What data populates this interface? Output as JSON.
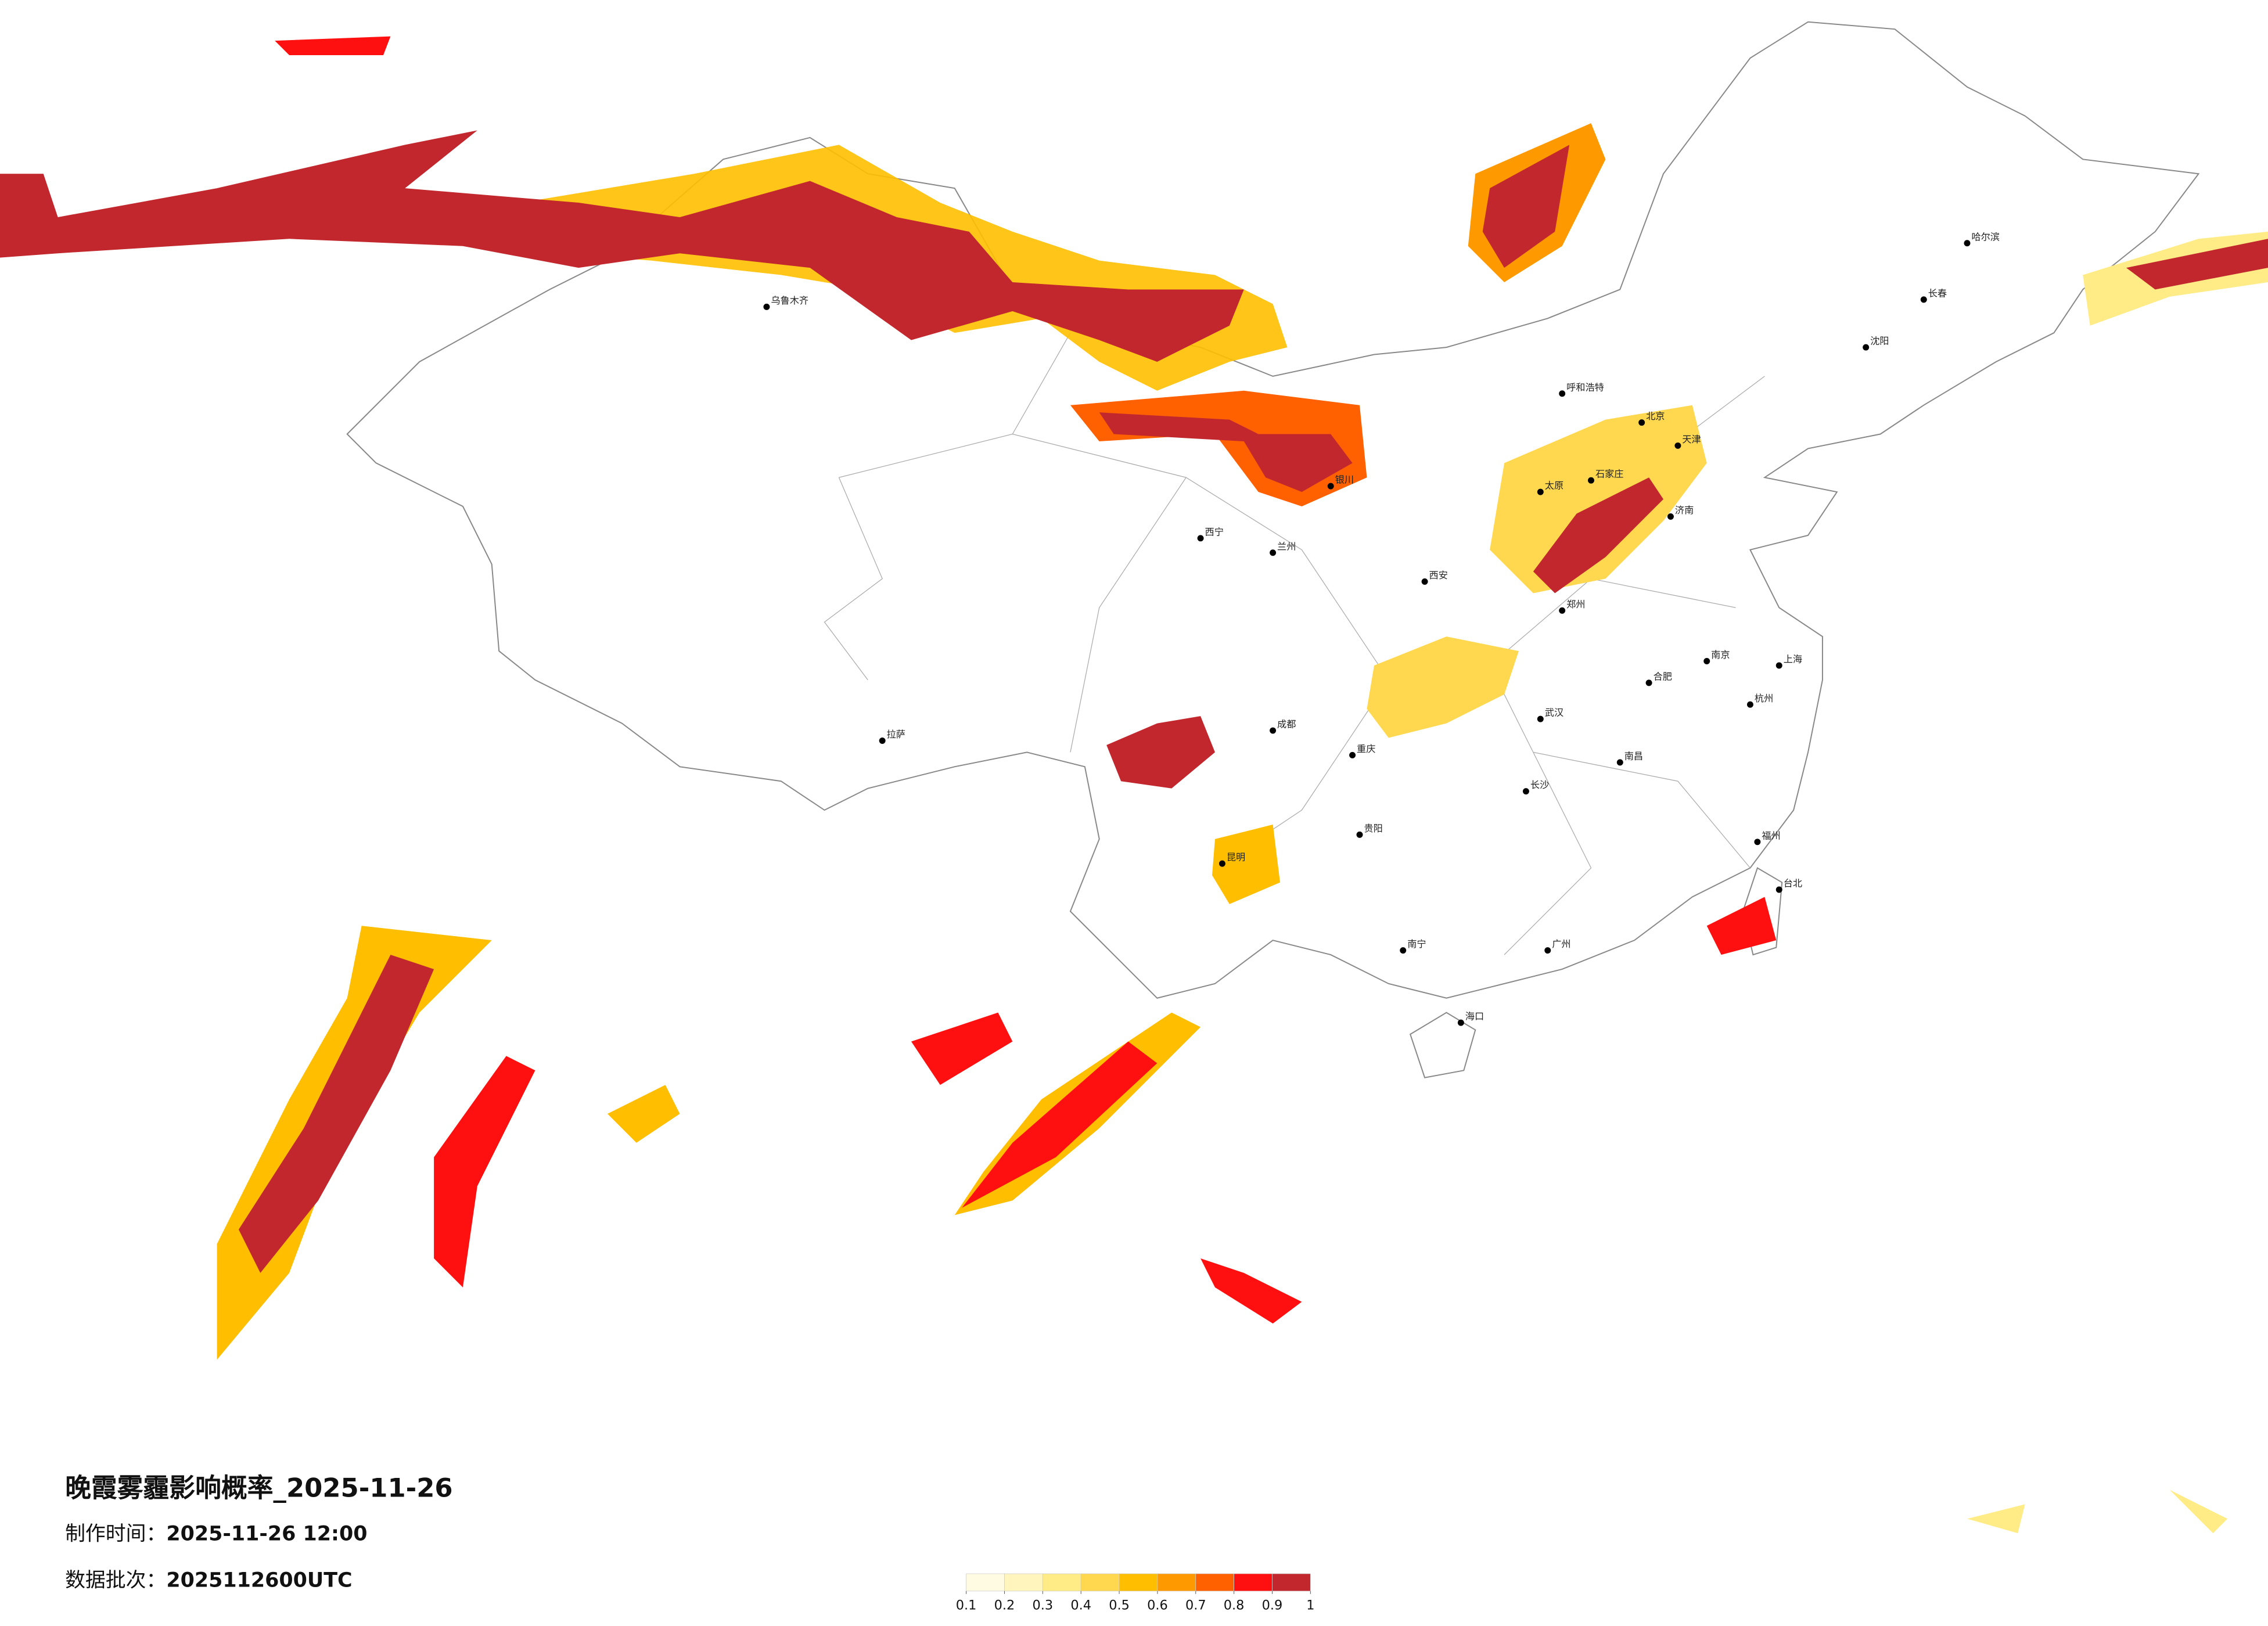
{
  "map": {
    "title": "晚霞雾霾影响概率_2025-11-26",
    "info": [
      {
        "label": "制作时间：",
        "value": "2025-11-26 12:00"
      },
      {
        "label": "数据批次：",
        "value": "2025112600UTC"
      }
    ],
    "legend": {
      "ticks": [
        0.1,
        0.2,
        0.3,
        0.4,
        0.5,
        0.6,
        0.7,
        0.8,
        0.9,
        1
      ],
      "colors": [
        "#fffbe3",
        "#fff5bd",
        "#ffec86",
        "#ffd84f",
        "#ffbf00",
        "#ff9900",
        "#ff6000",
        "#ff1010",
        "#c1272d"
      ]
    },
    "cities": [
      "哈尔滨",
      "长春",
      "沈阳",
      "呼和浩特",
      "北京",
      "天津",
      "石家庄",
      "太原",
      "济南",
      "郑州",
      "西安",
      "兰州",
      "银川",
      "西宁",
      "乌鲁木齐",
      "拉萨",
      "成都",
      "重庆",
      "昆明",
      "贵阳",
      "南宁",
      "广州",
      "福州",
      "杭州",
      "南京",
      "合肥",
      "武汉",
      "长沙",
      "南昌",
      "海口",
      "台北",
      "上海"
    ]
  }
}
